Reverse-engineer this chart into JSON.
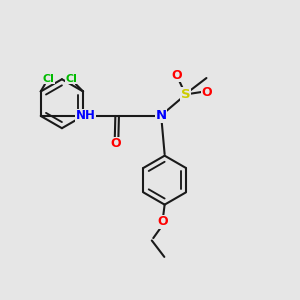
{
  "bg_color": "#e6e6e6",
  "bond_color": "#1a1a1a",
  "bond_width": 1.5,
  "atom_colors": {
    "Cl": "#00bb00",
    "N": "#0000ff",
    "O": "#ff0000",
    "S": "#cccc00",
    "H": "#6699bb",
    "C": "#1a1a1a"
  },
  "figsize": [
    3.0,
    3.0
  ],
  "dpi": 100
}
